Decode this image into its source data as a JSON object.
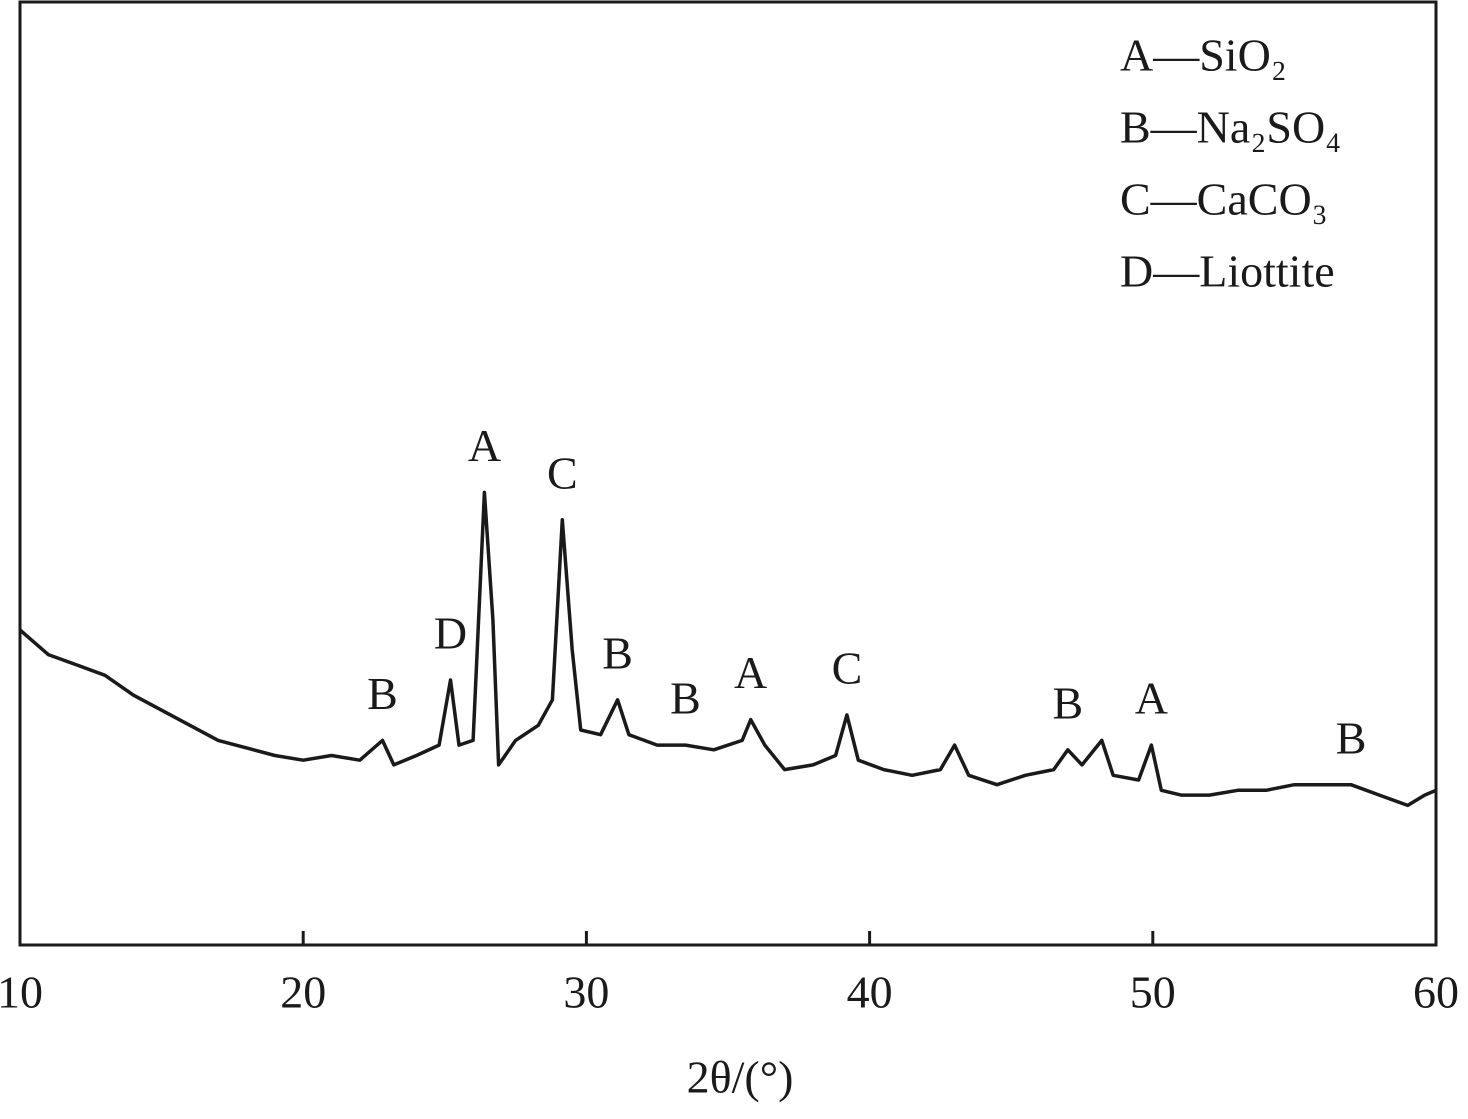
{
  "chart_data": {
    "type": "line",
    "xlabel": "2θ/(°)",
    "xlim": [
      10,
      60
    ],
    "xticks": [
      10,
      20,
      30,
      40,
      50,
      60
    ],
    "ylim": [
      0,
      100
    ],
    "legend": [
      "A—SiO₂",
      "B—Na₂SO₄",
      "C—CaCO₃",
      "D—Liottite"
    ],
    "series": [
      {
        "color": "#1a1a1a",
        "x": [
          10,
          11,
          12,
          13,
          14,
          15,
          16,
          17,
          18,
          19,
          20,
          21,
          22,
          22.8,
          23.2,
          24,
          24.8,
          25.2,
          25.5,
          26.0,
          26.4,
          26.7,
          26.9,
          27.5,
          28.3,
          28.8,
          29.15,
          29.5,
          29.8,
          30.5,
          31.1,
          31.5,
          32.5,
          33.5,
          34.5,
          35.5,
          35.8,
          36.3,
          37,
          38,
          38.8,
          39.2,
          39.6,
          40.5,
          41.5,
          42.5,
          43,
          43.5,
          44.5,
          45.5,
          46.5,
          47,
          47.5,
          48.2,
          48.6,
          49.5,
          49.95,
          50.3,
          51,
          52,
          53,
          54,
          55,
          56,
          57,
          58,
          59,
          59.6,
          60
        ],
        "values": [
          33.4,
          30.8,
          29.7,
          28.6,
          26.5,
          24.9,
          23.3,
          21.7,
          20.9,
          20.1,
          19.6,
          20.1,
          19.6,
          21.7,
          19.1,
          20.1,
          21.2,
          28.1,
          21.2,
          21.7,
          48.0,
          34.5,
          19.1,
          21.7,
          23.3,
          26.0,
          45.1,
          31.3,
          22.8,
          22.3,
          26.0,
          22.3,
          21.2,
          21.2,
          20.7,
          21.7,
          23.9,
          21.2,
          18.6,
          19.1,
          20.1,
          24.4,
          19.6,
          18.6,
          18.0,
          18.6,
          21.2,
          18.0,
          17.0,
          18.0,
          18.6,
          20.7,
          19.1,
          21.7,
          18.0,
          17.5,
          21.2,
          16.4,
          15.9,
          15.9,
          16.4,
          16.4,
          17.0,
          17.0,
          17.0,
          15.9,
          14.8,
          15.9,
          16.4
        ]
      }
    ],
    "annotations": [
      {
        "text": "B",
        "x": 22.8
      },
      {
        "text": "D",
        "x": 25.2
      },
      {
        "text": "A",
        "x": 26.4
      },
      {
        "text": "C",
        "x": 29.15
      },
      {
        "text": "B",
        "x": 31.1
      },
      {
        "text": "B",
        "x": 33.5
      },
      {
        "text": "A",
        "x": 35.8
      },
      {
        "text": "C",
        "x": 39.2
      },
      {
        "text": "B",
        "x": 47
      },
      {
        "text": "A",
        "x": 49.95
      },
      {
        "text": "B",
        "x": 57
      }
    ]
  }
}
